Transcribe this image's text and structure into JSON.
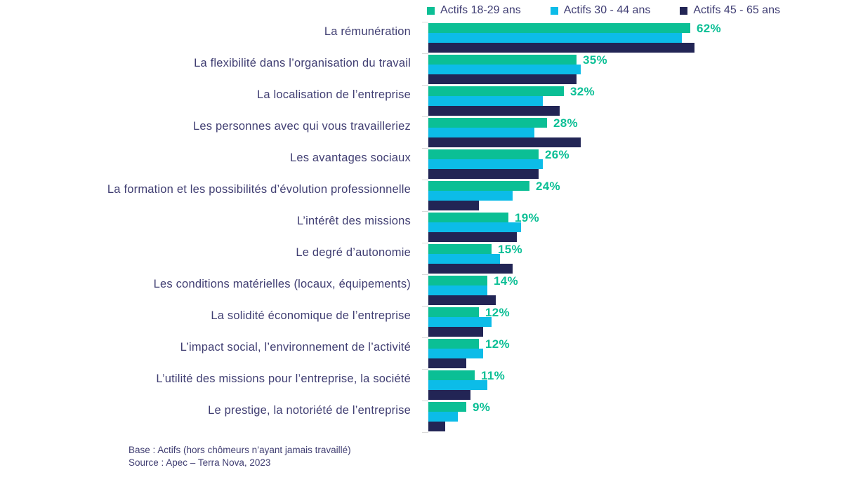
{
  "legend": {
    "items": [
      {
        "label": "Actifs 18-29 ans",
        "color": "#0bbf95"
      },
      {
        "label": "Actifs 30 - 44 ans",
        "color": "#0cbce8"
      },
      {
        "label": "Actifs 45 - 65 ans",
        "color": "#222555"
      }
    ]
  },
  "chart_data": {
    "type": "bar",
    "orientation": "horizontal",
    "unit": "%",
    "categories": [
      "La rémunération",
      "La flexibilité dans l’organisation du travail",
      "La localisation de l’entreprise",
      "Les personnes avec qui vous travailleriez",
      "Les avantages sociaux",
      "La formation et les possibilités d’évolution professionnelle",
      "L’intérêt des missions",
      "Le degré d’autonomie",
      "Les conditions matérielles (locaux, équipements)",
      "La solidité économique de l’entreprise",
      "L’impact social, l’environnement de l’activité",
      "L’utilité des missions pour l’entreprise, la société",
      "Le prestige, la notoriété de l’entreprise"
    ],
    "series": [
      {
        "name": "Actifs 18-29 ans",
        "color": "#0bbf95",
        "values": [
          62,
          35,
          32,
          28,
          26,
          24,
          19,
          15,
          14,
          12,
          12,
          11,
          9
        ]
      },
      {
        "name": "Actifs 30 - 44 ans",
        "color": "#0cbce8",
        "values": [
          60,
          36,
          27,
          25,
          27,
          20,
          22,
          17,
          14,
          15,
          13,
          14,
          7
        ]
      },
      {
        "name": "Actifs 45 - 65 ans",
        "color": "#222555",
        "values": [
          63,
          35,
          31,
          36,
          26,
          12,
          21,
          20,
          16,
          13,
          9,
          10,
          4
        ]
      }
    ],
    "value_labels": [
      "62%",
      "35%",
      "32%",
      "28%",
      "26%",
      "24%",
      "19%",
      "15%",
      "14%",
      "12%",
      "12%",
      "11%",
      "9%"
    ],
    "value_label_series": "Actifs 18-29 ans",
    "value_label_color": "#0bbf95",
    "xlim": [
      0,
      100
    ],
    "grid": "off",
    "legend_position": "top"
  },
  "footer": {
    "base": "Base : Actifs (hors chômeurs n’ayant jamais travaillé)",
    "source": "Source : Apec – Terra Nova, 2023"
  }
}
